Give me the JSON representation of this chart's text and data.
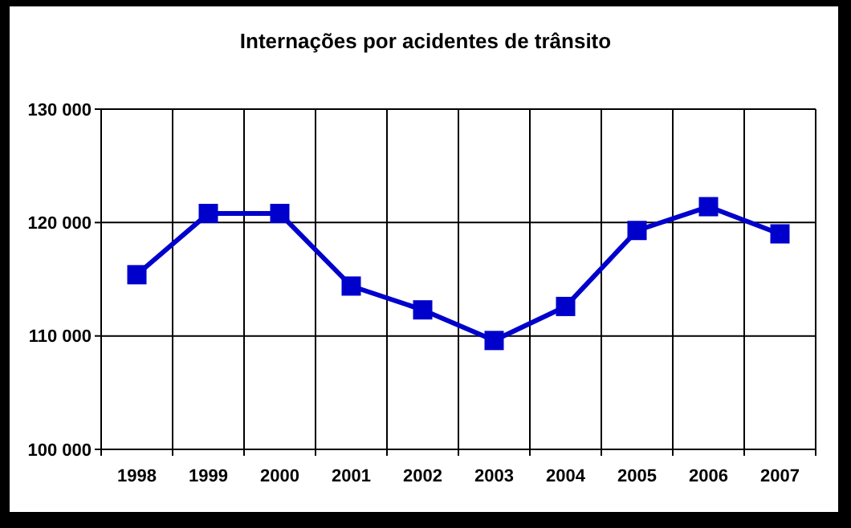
{
  "chart_data": {
    "type": "line",
    "title": "Internações por acidentes de trânsito",
    "categories": [
      "1998",
      "1999",
      "2000",
      "2001",
      "2002",
      "2003",
      "2004",
      "2005",
      "2006",
      "2007"
    ],
    "series": [
      {
        "color": "#0000cc",
        "values": [
          115400,
          120800,
          120800,
          114400,
          112300,
          109600,
          112600,
          119300,
          121400,
          119000
        ]
      }
    ],
    "ylim": [
      100000,
      130000
    ],
    "yticks": [
      {
        "value": 100000,
        "label": "100 000"
      },
      {
        "value": 110000,
        "label": "110 000"
      },
      {
        "value": 120000,
        "label": "120 000"
      },
      {
        "value": 130000,
        "label": "130 000"
      }
    ],
    "grid": true,
    "marker": "square",
    "line_style": "solid"
  }
}
